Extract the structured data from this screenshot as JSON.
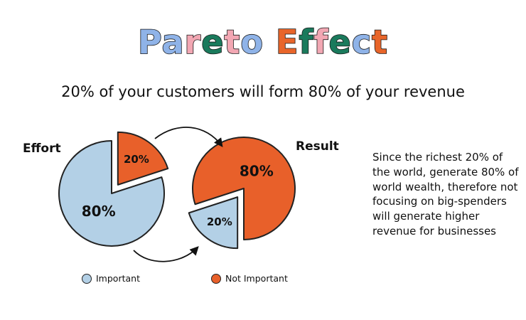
{
  "title": {
    "letters": [
      {
        "ch": "P",
        "color": "#8fb3e8"
      },
      {
        "ch": "a",
        "color": "#8fb3e8"
      },
      {
        "ch": "r",
        "color": "#f2a7b3"
      },
      {
        "ch": "e",
        "color": "#1a7a5c"
      },
      {
        "ch": "t",
        "color": "#f2a7b3"
      },
      {
        "ch": "o",
        "color": "#8fb3e8"
      },
      {
        "ch": " ",
        "color": "#ffffff"
      },
      {
        "ch": "E",
        "color": "#e8652a"
      },
      {
        "ch": "f",
        "color": "#1a7a5c"
      },
      {
        "ch": "f",
        "color": "#f2a7b3"
      },
      {
        "ch": "e",
        "color": "#1a7a5c"
      },
      {
        "ch": "c",
        "color": "#8fb3e8"
      },
      {
        "ch": "t",
        "color": "#e8652a"
      }
    ]
  },
  "subtitle": "20% of your customers will form 80% of your revenue",
  "description": "Since the richest 20% of the world, generate 80% of world wealth, therefore not focusing on big-spenders will generate higher revenue for businesses",
  "colors": {
    "important": "#b3d0e6",
    "not_important": "#e8602a",
    "outline": "#222222"
  },
  "chart_data": [
    {
      "type": "pie",
      "title": "Effort",
      "slices": [
        {
          "label": "80%",
          "value": 80,
          "category": "Important"
        },
        {
          "label": "20%",
          "value": 20,
          "category": "Not Important",
          "exploded": true
        }
      ]
    },
    {
      "type": "pie",
      "title": "Result",
      "slices": [
        {
          "label": "80%",
          "value": 80,
          "category": "Not Important"
        },
        {
          "label": "20%",
          "value": 20,
          "category": "Important",
          "exploded": true
        }
      ]
    }
  ],
  "legend": [
    {
      "label": "Important",
      "category": "Important"
    },
    {
      "label": "Not Important",
      "category": "Not Important"
    }
  ]
}
